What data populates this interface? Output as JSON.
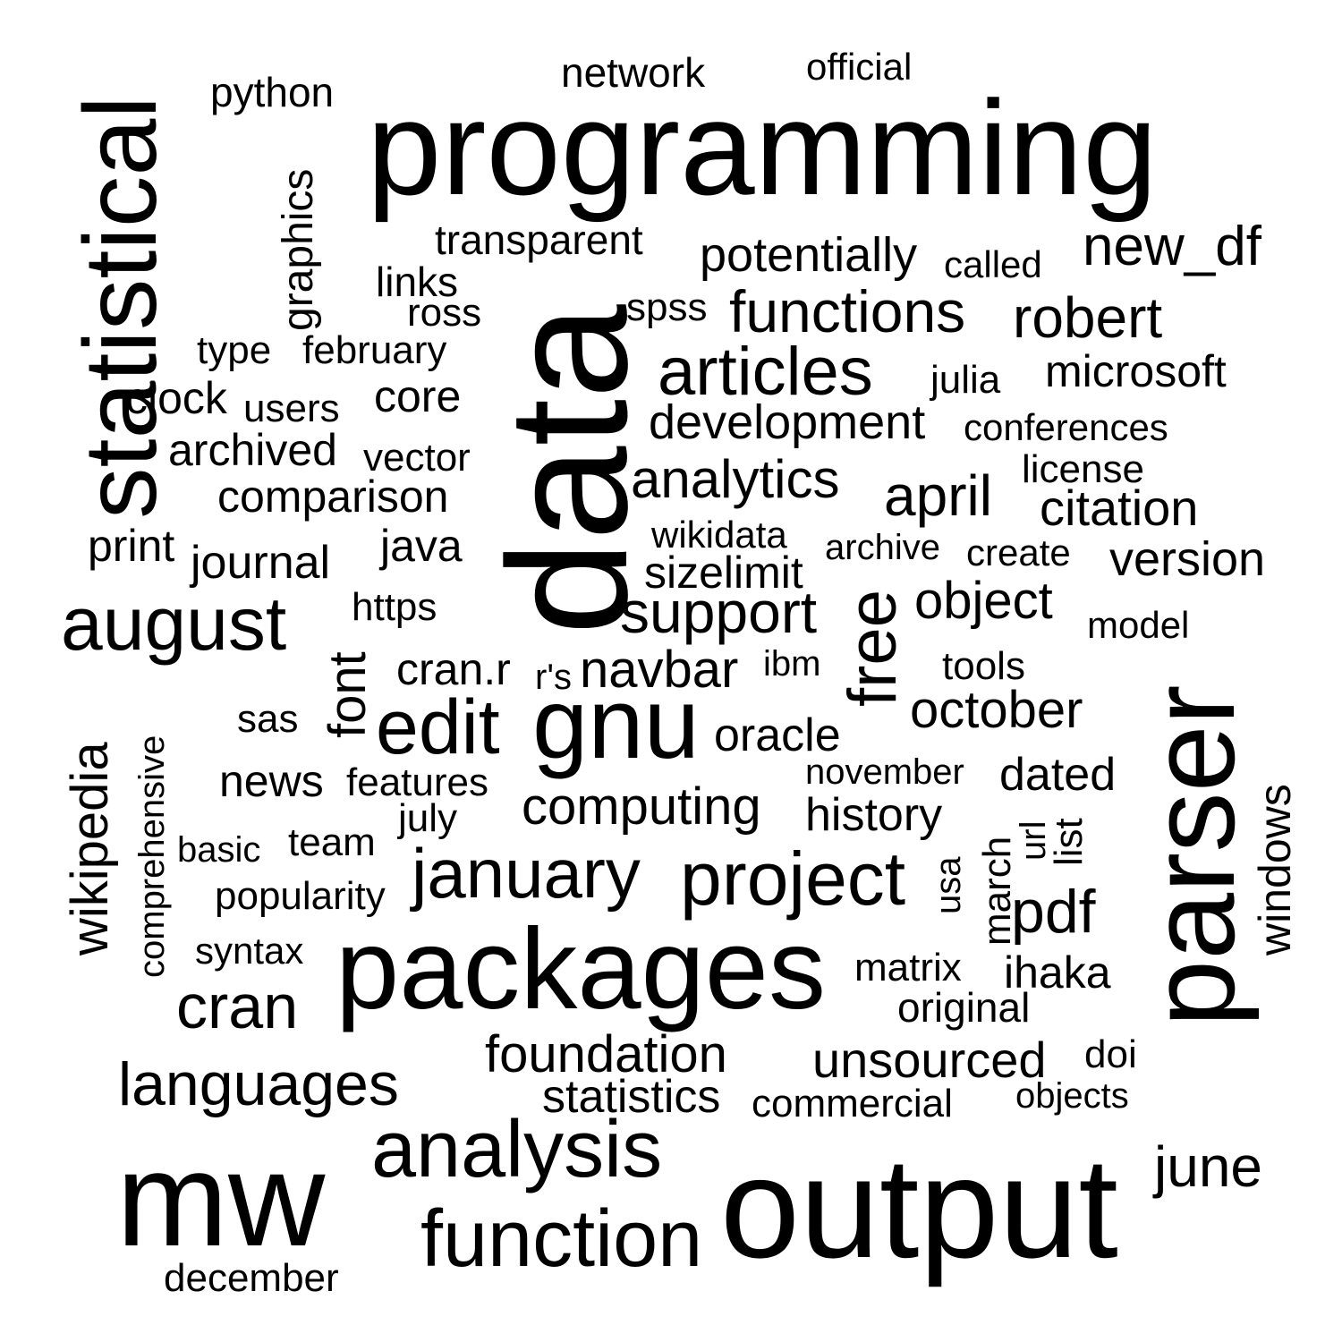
{
  "text_color": "#000000",
  "background_color": "#ffffff",
  "words": [
    {
      "text": "programming",
      "rotated": false
    },
    {
      "text": "data",
      "rotated": true
    },
    {
      "text": "statistical",
      "rotated": true
    },
    {
      "text": "parser",
      "rotated": true
    },
    {
      "text": "output",
      "rotated": false
    },
    {
      "text": "packages",
      "rotated": false
    },
    {
      "text": "mw",
      "rotated": false
    },
    {
      "text": "gnu",
      "rotated": false
    },
    {
      "text": "august",
      "rotated": false
    },
    {
      "text": "edit",
      "rotated": false
    },
    {
      "text": "analysis",
      "rotated": false
    },
    {
      "text": "function",
      "rotated": false
    },
    {
      "text": "project",
      "rotated": false
    },
    {
      "text": "articles",
      "rotated": false
    },
    {
      "text": "january",
      "rotated": false
    },
    {
      "text": "free",
      "rotated": true
    },
    {
      "text": "cran",
      "rotated": false
    },
    {
      "text": "languages",
      "rotated": false
    },
    {
      "text": "support",
      "rotated": false
    },
    {
      "text": "functions",
      "rotated": false
    },
    {
      "text": "robert",
      "rotated": false
    },
    {
      "text": "june",
      "rotated": false
    },
    {
      "text": "new_df",
      "rotated": false
    },
    {
      "text": "pdf",
      "rotated": false
    },
    {
      "text": "april",
      "rotated": false
    },
    {
      "text": "analytics",
      "rotated": false
    },
    {
      "text": "development",
      "rotated": false
    },
    {
      "text": "potentially",
      "rotated": false
    },
    {
      "text": "citation",
      "rotated": false
    },
    {
      "text": "version",
      "rotated": false
    },
    {
      "text": "october",
      "rotated": false
    },
    {
      "text": "object",
      "rotated": false
    },
    {
      "text": "computing",
      "rotated": false
    },
    {
      "text": "foundation",
      "rotated": false
    },
    {
      "text": "unsourced",
      "rotated": false
    },
    {
      "text": "navbar",
      "rotated": false
    },
    {
      "text": "history",
      "rotated": false
    },
    {
      "text": "comparison",
      "rotated": false
    },
    {
      "text": "journal",
      "rotated": false
    },
    {
      "text": "statistics",
      "rotated": false
    },
    {
      "text": "transparent",
      "rotated": false
    },
    {
      "text": "microsoft",
      "rotated": false
    },
    {
      "text": "oracle",
      "rotated": false
    },
    {
      "text": "dated",
      "rotated": false
    },
    {
      "text": "ihaka",
      "rotated": false
    },
    {
      "text": "cran.r",
      "rotated": false
    },
    {
      "text": "sizelimit",
      "rotated": false
    },
    {
      "text": "clock",
      "rotated": false
    },
    {
      "text": "news",
      "rotated": false
    },
    {
      "text": "core",
      "rotated": false
    },
    {
      "text": "archived",
      "rotated": false
    },
    {
      "text": "print",
      "rotated": false
    },
    {
      "text": "java",
      "rotated": false
    },
    {
      "text": "font",
      "rotated": true
    },
    {
      "text": "wikipedia",
      "rotated": true
    },
    {
      "text": "graphics",
      "rotated": true
    },
    {
      "text": "windows",
      "rotated": true
    },
    {
      "text": "march",
      "rotated": true
    },
    {
      "text": "python",
      "rotated": false
    },
    {
      "text": "network",
      "rotated": false
    },
    {
      "text": "official",
      "rotated": false
    },
    {
      "text": "links",
      "rotated": false
    },
    {
      "text": "ross",
      "rotated": false
    },
    {
      "text": "spss",
      "rotated": false
    },
    {
      "text": "called",
      "rotated": false
    },
    {
      "text": "type",
      "rotated": false
    },
    {
      "text": "february",
      "rotated": false
    },
    {
      "text": "julia",
      "rotated": false
    },
    {
      "text": "users",
      "rotated": false
    },
    {
      "text": "conferences",
      "rotated": false
    },
    {
      "text": "vector",
      "rotated": false
    },
    {
      "text": "license",
      "rotated": false
    },
    {
      "text": "wikidata",
      "rotated": false
    },
    {
      "text": "archive",
      "rotated": false
    },
    {
      "text": "create",
      "rotated": false
    },
    {
      "text": "https",
      "rotated": false
    },
    {
      "text": "model",
      "rotated": false
    },
    {
      "text": "r's",
      "rotated": false
    },
    {
      "text": "ibm",
      "rotated": false
    },
    {
      "text": "tools",
      "rotated": false
    },
    {
      "text": "sas",
      "rotated": false
    },
    {
      "text": "november",
      "rotated": false
    },
    {
      "text": "features",
      "rotated": false
    },
    {
      "text": "july",
      "rotated": false
    },
    {
      "text": "team",
      "rotated": false
    },
    {
      "text": "basic",
      "rotated": false
    },
    {
      "text": "popularity",
      "rotated": false
    },
    {
      "text": "syntax",
      "rotated": false
    },
    {
      "text": "matrix",
      "rotated": false
    },
    {
      "text": "original",
      "rotated": false
    },
    {
      "text": "doi",
      "rotated": false
    },
    {
      "text": "objects",
      "rotated": false
    },
    {
      "text": "commercial",
      "rotated": false
    },
    {
      "text": "december",
      "rotated": false
    },
    {
      "text": "comprehensive",
      "rotated": true
    },
    {
      "text": "usa",
      "rotated": true
    },
    {
      "text": "url",
      "rotated": true
    },
    {
      "text": "list",
      "rotated": true
    }
  ]
}
